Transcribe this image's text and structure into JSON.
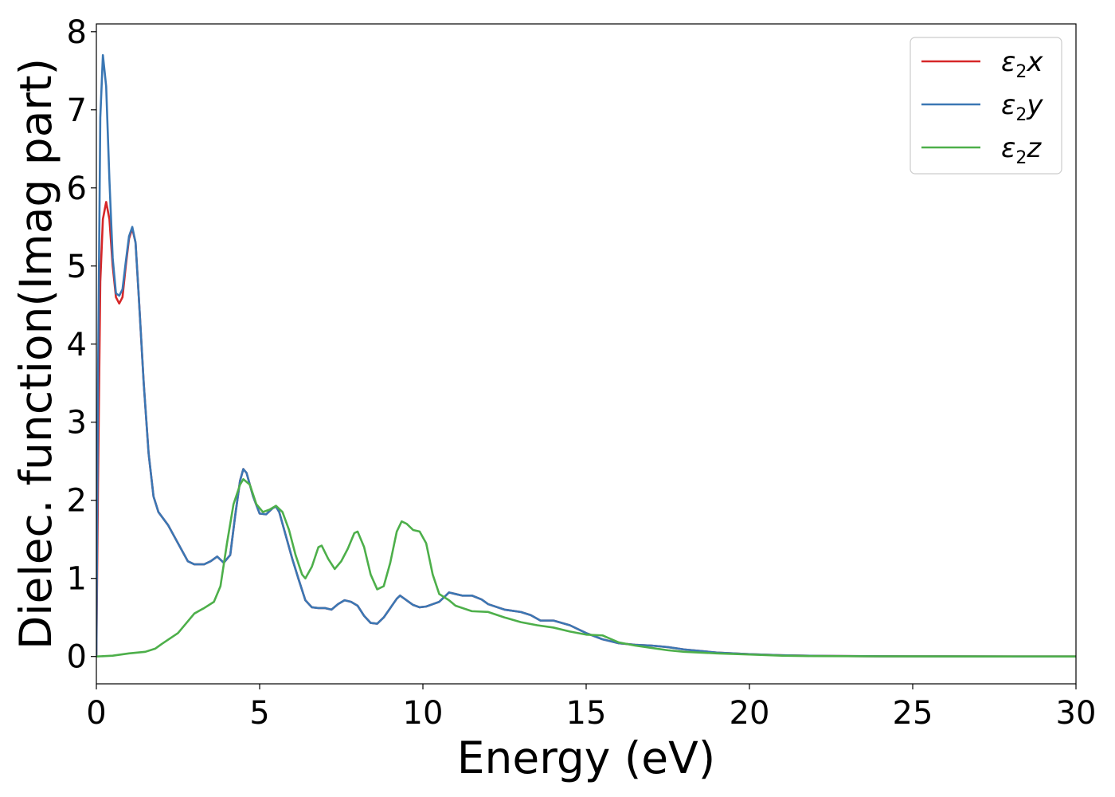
{
  "chart_data": {
    "type": "line",
    "xlabel": "Energy (eV)",
    "ylabel": "Dielec. function(Imag part)",
    "xlim": [
      0,
      30
    ],
    "ylim": [
      -0.35,
      8.1
    ],
    "xticks": [
      0,
      5,
      10,
      15,
      20,
      25,
      30
    ],
    "yticks": [
      0,
      1,
      2,
      3,
      4,
      5,
      6,
      7,
      8
    ],
    "legend_position": "top-right",
    "grid": false,
    "series": [
      {
        "name": "ε₂x",
        "legend_base": "ε",
        "legend_sub": "2",
        "legend_tail": "x",
        "color": "#d62728",
        "points": [
          [
            0,
            0
          ],
          [
            0.05,
            2.2
          ],
          [
            0.12,
            4.8
          ],
          [
            0.2,
            5.6
          ],
          [
            0.3,
            5.82
          ],
          [
            0.4,
            5.6
          ],
          [
            0.5,
            5.0
          ],
          [
            0.6,
            4.6
          ],
          [
            0.7,
            4.52
          ],
          [
            0.8,
            4.6
          ],
          [
            0.9,
            5.0
          ],
          [
            1.0,
            5.35
          ],
          [
            1.1,
            5.48
          ],
          [
            1.2,
            5.3
          ],
          [
            1.3,
            4.6
          ],
          [
            1.45,
            3.5
          ],
          [
            1.6,
            2.6
          ],
          [
            1.75,
            2.05
          ],
          [
            1.9,
            1.85
          ],
          [
            2.2,
            1.68
          ],
          [
            2.5,
            1.45
          ],
          [
            2.8,
            1.22
          ],
          [
            3.0,
            1.18
          ],
          [
            3.3,
            1.18
          ],
          [
            3.5,
            1.22
          ],
          [
            3.7,
            1.28
          ],
          [
            3.9,
            1.2
          ],
          [
            4.1,
            1.3
          ],
          [
            4.25,
            1.8
          ],
          [
            4.4,
            2.25
          ],
          [
            4.5,
            2.4
          ],
          [
            4.6,
            2.35
          ],
          [
            4.8,
            2.05
          ],
          [
            5.0,
            1.83
          ],
          [
            5.2,
            1.82
          ],
          [
            5.4,
            1.9
          ],
          [
            5.5,
            1.92
          ],
          [
            5.6,
            1.85
          ],
          [
            5.8,
            1.55
          ],
          [
            6.0,
            1.25
          ],
          [
            6.2,
            0.98
          ],
          [
            6.4,
            0.72
          ],
          [
            6.6,
            0.63
          ],
          [
            6.8,
            0.62
          ],
          [
            7.0,
            0.62
          ],
          [
            7.2,
            0.6
          ],
          [
            7.4,
            0.67
          ],
          [
            7.6,
            0.72
          ],
          [
            7.8,
            0.7
          ],
          [
            8.0,
            0.65
          ],
          [
            8.2,
            0.52
          ],
          [
            8.4,
            0.43
          ],
          [
            8.6,
            0.42
          ],
          [
            8.8,
            0.5
          ],
          [
            9.0,
            0.62
          ],
          [
            9.2,
            0.74
          ],
          [
            9.3,
            0.78
          ],
          [
            9.5,
            0.72
          ],
          [
            9.7,
            0.66
          ],
          [
            9.9,
            0.63
          ],
          [
            10.1,
            0.64
          ],
          [
            10.3,
            0.67
          ],
          [
            10.5,
            0.7
          ],
          [
            10.7,
            0.78
          ],
          [
            10.8,
            0.82
          ],
          [
            11.0,
            0.8
          ],
          [
            11.2,
            0.78
          ],
          [
            11.5,
            0.78
          ],
          [
            11.8,
            0.73
          ],
          [
            12.0,
            0.67
          ],
          [
            12.5,
            0.6
          ],
          [
            13.0,
            0.57
          ],
          [
            13.3,
            0.53
          ],
          [
            13.6,
            0.46
          ],
          [
            14.0,
            0.46
          ],
          [
            14.5,
            0.4
          ],
          [
            15.0,
            0.3
          ],
          [
            15.5,
            0.22
          ],
          [
            16.0,
            0.17
          ],
          [
            16.5,
            0.15
          ],
          [
            17.0,
            0.14
          ],
          [
            17.5,
            0.12
          ],
          [
            18.0,
            0.09
          ],
          [
            18.5,
            0.07
          ],
          [
            19.0,
            0.05
          ],
          [
            20.0,
            0.03
          ],
          [
            21.0,
            0.015
          ],
          [
            22.0,
            0.008
          ],
          [
            24.0,
            0.003
          ],
          [
            26.0,
            0.001
          ],
          [
            30.0,
            0.0
          ]
        ]
      },
      {
        "name": "ε₂y",
        "legend_base": "ε",
        "legend_sub": "2",
        "legend_tail": "y",
        "color": "#3a77b4",
        "points": [
          [
            0,
            0
          ],
          [
            0.05,
            3.5
          ],
          [
            0.12,
            6.9
          ],
          [
            0.2,
            7.7
          ],
          [
            0.3,
            7.3
          ],
          [
            0.4,
            6.1
          ],
          [
            0.5,
            5.1
          ],
          [
            0.6,
            4.65
          ],
          [
            0.7,
            4.62
          ],
          [
            0.8,
            4.7
          ],
          [
            0.9,
            5.05
          ],
          [
            1.0,
            5.38
          ],
          [
            1.1,
            5.5
          ],
          [
            1.2,
            5.3
          ],
          [
            1.3,
            4.6
          ],
          [
            1.45,
            3.5
          ],
          [
            1.6,
            2.6
          ],
          [
            1.75,
            2.05
          ],
          [
            1.9,
            1.85
          ],
          [
            2.2,
            1.68
          ],
          [
            2.5,
            1.45
          ],
          [
            2.8,
            1.22
          ],
          [
            3.0,
            1.18
          ],
          [
            3.3,
            1.18
          ],
          [
            3.5,
            1.22
          ],
          [
            3.7,
            1.28
          ],
          [
            3.9,
            1.2
          ],
          [
            4.1,
            1.3
          ],
          [
            4.25,
            1.8
          ],
          [
            4.4,
            2.25
          ],
          [
            4.5,
            2.4
          ],
          [
            4.6,
            2.35
          ],
          [
            4.8,
            2.05
          ],
          [
            5.0,
            1.83
          ],
          [
            5.2,
            1.82
          ],
          [
            5.4,
            1.9
          ],
          [
            5.5,
            1.92
          ],
          [
            5.6,
            1.85
          ],
          [
            5.8,
            1.55
          ],
          [
            6.0,
            1.25
          ],
          [
            6.2,
            0.98
          ],
          [
            6.4,
            0.72
          ],
          [
            6.6,
            0.63
          ],
          [
            6.8,
            0.62
          ],
          [
            7.0,
            0.62
          ],
          [
            7.2,
            0.6
          ],
          [
            7.4,
            0.67
          ],
          [
            7.6,
            0.72
          ],
          [
            7.8,
            0.7
          ],
          [
            8.0,
            0.65
          ],
          [
            8.2,
            0.52
          ],
          [
            8.4,
            0.43
          ],
          [
            8.6,
            0.42
          ],
          [
            8.8,
            0.5
          ],
          [
            9.0,
            0.62
          ],
          [
            9.2,
            0.74
          ],
          [
            9.3,
            0.78
          ],
          [
            9.5,
            0.72
          ],
          [
            9.7,
            0.66
          ],
          [
            9.9,
            0.63
          ],
          [
            10.1,
            0.64
          ],
          [
            10.3,
            0.67
          ],
          [
            10.5,
            0.7
          ],
          [
            10.7,
            0.78
          ],
          [
            10.8,
            0.82
          ],
          [
            11.0,
            0.8
          ],
          [
            11.2,
            0.78
          ],
          [
            11.5,
            0.78
          ],
          [
            11.8,
            0.73
          ],
          [
            12.0,
            0.67
          ],
          [
            12.5,
            0.6
          ],
          [
            13.0,
            0.57
          ],
          [
            13.3,
            0.53
          ],
          [
            13.6,
            0.46
          ],
          [
            14.0,
            0.46
          ],
          [
            14.5,
            0.4
          ],
          [
            15.0,
            0.3
          ],
          [
            15.5,
            0.22
          ],
          [
            16.0,
            0.17
          ],
          [
            16.5,
            0.15
          ],
          [
            17.0,
            0.14
          ],
          [
            17.5,
            0.12
          ],
          [
            18.0,
            0.09
          ],
          [
            18.5,
            0.07
          ],
          [
            19.0,
            0.05
          ],
          [
            20.0,
            0.03
          ],
          [
            21.0,
            0.015
          ],
          [
            22.0,
            0.008
          ],
          [
            24.0,
            0.003
          ],
          [
            26.0,
            0.001
          ],
          [
            30.0,
            0.0
          ]
        ]
      },
      {
        "name": "ε₂z",
        "legend_base": "ε",
        "legend_sub": "2",
        "legend_tail": "z",
        "color": "#4daf4a",
        "points": [
          [
            0,
            0
          ],
          [
            0.5,
            0.01
          ],
          [
            1.0,
            0.04
          ],
          [
            1.5,
            0.06
          ],
          [
            1.8,
            0.1
          ],
          [
            2.0,
            0.16
          ],
          [
            2.5,
            0.3
          ],
          [
            3.0,
            0.55
          ],
          [
            3.3,
            0.62
          ],
          [
            3.6,
            0.7
          ],
          [
            3.8,
            0.9
          ],
          [
            4.0,
            1.45
          ],
          [
            4.2,
            1.95
          ],
          [
            4.4,
            2.2
          ],
          [
            4.5,
            2.27
          ],
          [
            4.7,
            2.2
          ],
          [
            4.9,
            1.95
          ],
          [
            5.1,
            1.85
          ],
          [
            5.3,
            1.88
          ],
          [
            5.5,
            1.93
          ],
          [
            5.7,
            1.85
          ],
          [
            5.9,
            1.62
          ],
          [
            6.1,
            1.3
          ],
          [
            6.3,
            1.05
          ],
          [
            6.4,
            1.0
          ],
          [
            6.6,
            1.15
          ],
          [
            6.8,
            1.4
          ],
          [
            6.9,
            1.42
          ],
          [
            7.1,
            1.25
          ],
          [
            7.3,
            1.12
          ],
          [
            7.5,
            1.22
          ],
          [
            7.7,
            1.38
          ],
          [
            7.9,
            1.58
          ],
          [
            8.0,
            1.6
          ],
          [
            8.2,
            1.4
          ],
          [
            8.4,
            1.05
          ],
          [
            8.6,
            0.86
          ],
          [
            8.8,
            0.9
          ],
          [
            9.0,
            1.2
          ],
          [
            9.2,
            1.6
          ],
          [
            9.35,
            1.73
          ],
          [
            9.5,
            1.7
          ],
          [
            9.7,
            1.62
          ],
          [
            9.9,
            1.6
          ],
          [
            10.1,
            1.45
          ],
          [
            10.3,
            1.05
          ],
          [
            10.5,
            0.8
          ],
          [
            10.8,
            0.72
          ],
          [
            11.0,
            0.65
          ],
          [
            11.5,
            0.58
          ],
          [
            12.0,
            0.57
          ],
          [
            12.5,
            0.5
          ],
          [
            13.0,
            0.44
          ],
          [
            13.5,
            0.4
          ],
          [
            14.0,
            0.37
          ],
          [
            14.5,
            0.32
          ],
          [
            15.0,
            0.28
          ],
          [
            15.5,
            0.27
          ],
          [
            16.0,
            0.18
          ],
          [
            16.5,
            0.14
          ],
          [
            17.0,
            0.11
          ],
          [
            17.5,
            0.08
          ],
          [
            18.0,
            0.06
          ],
          [
            18.5,
            0.05
          ],
          [
            19.0,
            0.04
          ],
          [
            20.0,
            0.025
          ],
          [
            21.0,
            0.01
          ],
          [
            22.0,
            0.005
          ],
          [
            24.0,
            0.002
          ],
          [
            30.0,
            0.0
          ]
        ]
      }
    ]
  }
}
